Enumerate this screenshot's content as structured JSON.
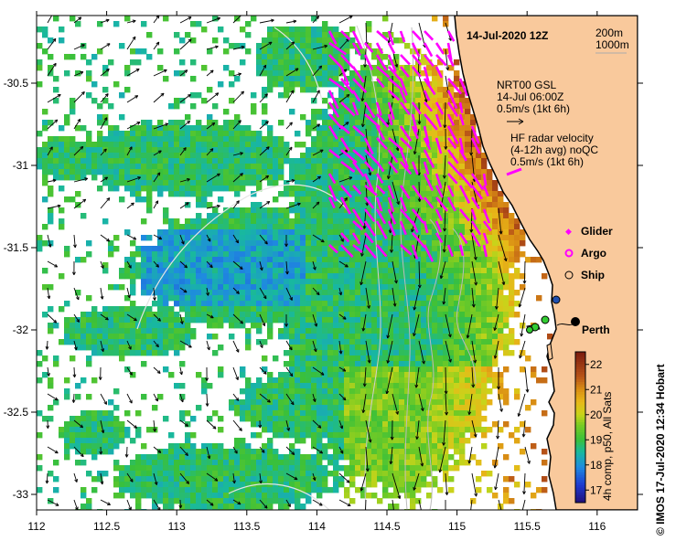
{
  "title": "14-Jul-2020 12Z",
  "depth_contours": [
    "200m",
    "1000m"
  ],
  "current_legend": {
    "source": "NRT00 GSL",
    "time": "14-Jul 06:00Z",
    "scale": "0.5m/s (1kt 6h)"
  },
  "radar_legend": {
    "line1": "HF radar velocity",
    "line2": "(4-12h avg) noQC",
    "scale": "0.5m/s (1kt 6h)"
  },
  "platforms": [
    {
      "label": "Glider",
      "symbol": "diamond",
      "color": "#ff00ff"
    },
    {
      "label": "Argo",
      "symbol": "ring",
      "color": "#ff00ff"
    },
    {
      "label": "Ship",
      "symbol": "circle",
      "color": "#000000"
    }
  ],
  "city_label": "Perth",
  "colorbar": {
    "ticks": [
      "22",
      "21",
      "20",
      "19",
      "18",
      "17"
    ],
    "label": "4h comp, p50, All Sats",
    "min": 16.5,
    "max": 22.5
  },
  "credit": "© IMOS 17-Jul-2020 12:34 Hobart",
  "x_ticks": [
    "112",
    "112.5",
    "113",
    "113.5",
    "114",
    "114.5",
    "115",
    "115.5",
    "116"
  ],
  "y_ticks": [
    "-30.5",
    "-31",
    "-31.5",
    "-32",
    "-32.5",
    "-33"
  ],
  "colors": {
    "land": "#f9c99c",
    "coast": "#000000",
    "radar_arrow": "#ff00ff",
    "current_arrow": "#000000"
  }
}
